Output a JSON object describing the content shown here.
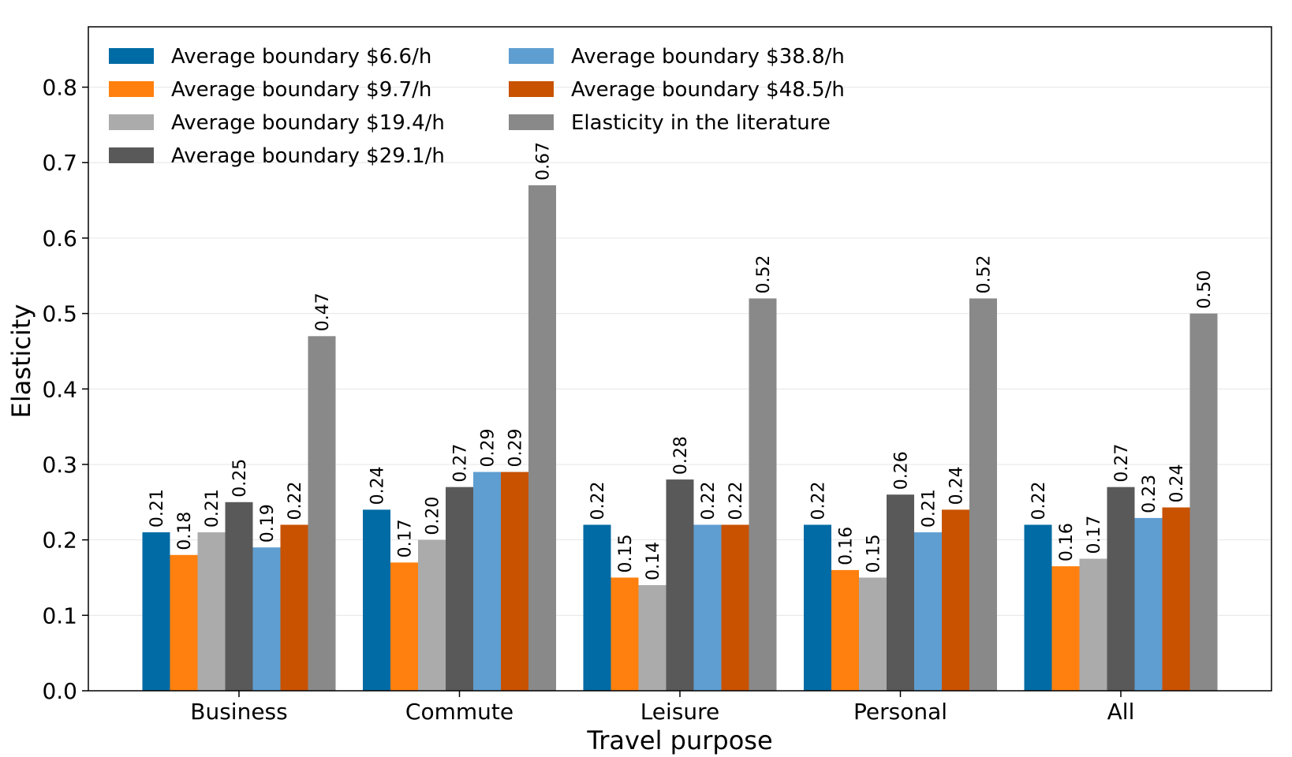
{
  "chart_data": {
    "type": "bar",
    "title": "",
    "xlabel": "Travel purpose",
    "ylabel": "Elasticity",
    "ylim": [
      0,
      0.88
    ],
    "yticks": [
      0.0,
      0.1,
      0.2,
      0.3,
      0.4,
      0.5,
      0.6,
      0.7,
      0.8
    ],
    "ytick_labels": [
      "0.0",
      "0.1",
      "0.2",
      "0.3",
      "0.4",
      "0.5",
      "0.6",
      "0.7",
      "0.8"
    ],
    "grid": true,
    "legend_position": "top-left",
    "categories": [
      "Business",
      "Commute",
      "Leisure",
      "Personal",
      "All"
    ],
    "series": [
      {
        "name": "Average boundary $6.6/h",
        "color": "#006ba4",
        "values": [
          0.21,
          0.24,
          0.22,
          0.22,
          0.22
        ],
        "labels": [
          "0.21",
          "0.24",
          "0.22",
          "0.22",
          "0.22"
        ]
      },
      {
        "name": "Average boundary $9.7/h",
        "color": "#ff800e",
        "values": [
          0.18,
          0.17,
          0.15,
          0.16,
          0.165
        ],
        "labels": [
          "0.18",
          "0.17",
          "0.15",
          "0.16",
          "0.16"
        ]
      },
      {
        "name": "Average boundary $19.4/h",
        "color": "#ababab",
        "values": [
          0.21,
          0.2,
          0.14,
          0.15,
          0.175
        ],
        "labels": [
          "0.21",
          "0.20",
          "0.14",
          "0.15",
          "0.17"
        ]
      },
      {
        "name": "Average boundary $29.1/h",
        "color": "#595959",
        "values": [
          0.25,
          0.27,
          0.28,
          0.26,
          0.27
        ],
        "labels": [
          "0.25",
          "0.27",
          "0.28",
          "0.26",
          "0.27"
        ]
      },
      {
        "name": "Average boundary $38.8/h",
        "color": "#5f9ed1",
        "values": [
          0.19,
          0.29,
          0.22,
          0.21,
          0.229
        ],
        "labels": [
          "0.19",
          "0.29",
          "0.22",
          "0.21",
          "0.23"
        ]
      },
      {
        "name": "Average boundary $48.5/h",
        "color": "#c85200",
        "values": [
          0.22,
          0.29,
          0.22,
          0.24,
          0.243
        ],
        "labels": [
          "0.22",
          "0.29",
          "0.22",
          "0.24",
          "0.24"
        ]
      },
      {
        "name": "Elasticity in the literature",
        "color": "#898989",
        "values": [
          0.47,
          0.67,
          0.52,
          0.52,
          0.5
        ],
        "labels": [
          "0.47",
          "0.67",
          "0.52",
          "0.52",
          "0.50"
        ]
      }
    ]
  }
}
